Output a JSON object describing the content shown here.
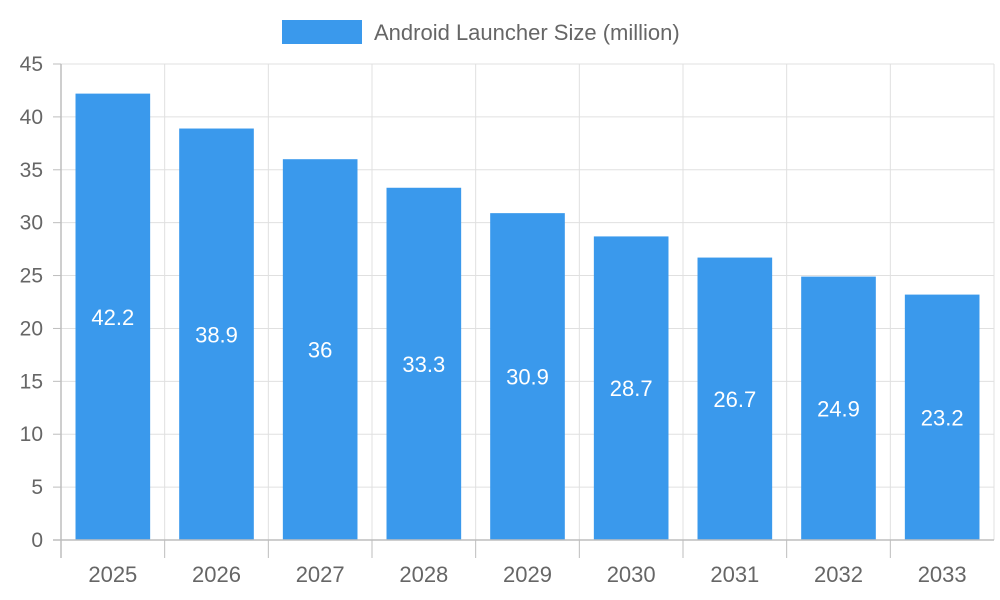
{
  "chart_data": {
    "type": "bar",
    "categories": [
      "2025",
      "2026",
      "2027",
      "2028",
      "2029",
      "2030",
      "2031",
      "2032",
      "2033"
    ],
    "series": [
      {
        "name": "Android Launcher Size (million)",
        "values": [
          42.2,
          38.9,
          36,
          33.3,
          30.9,
          28.7,
          26.7,
          24.9,
          23.2
        ],
        "color": "#3a99ec"
      }
    ],
    "data_labels": [
      "42.2",
      "38.9",
      "36",
      "33.3",
      "30.9",
      "28.7",
      "26.7",
      "24.9",
      "23.2"
    ],
    "title": "",
    "xlabel": "",
    "ylabel": "",
    "ylim": [
      0,
      45
    ],
    "yticks": [
      0,
      5,
      10,
      15,
      20,
      25,
      30,
      35,
      40,
      45
    ],
    "grid": true,
    "legend": "top-center",
    "colors": {
      "bar": "#3a99ec",
      "grid": "#e0e0e0",
      "axis": "#bdbdbd",
      "tick_text": "#666666",
      "data_label_text": "#ffffff"
    }
  }
}
